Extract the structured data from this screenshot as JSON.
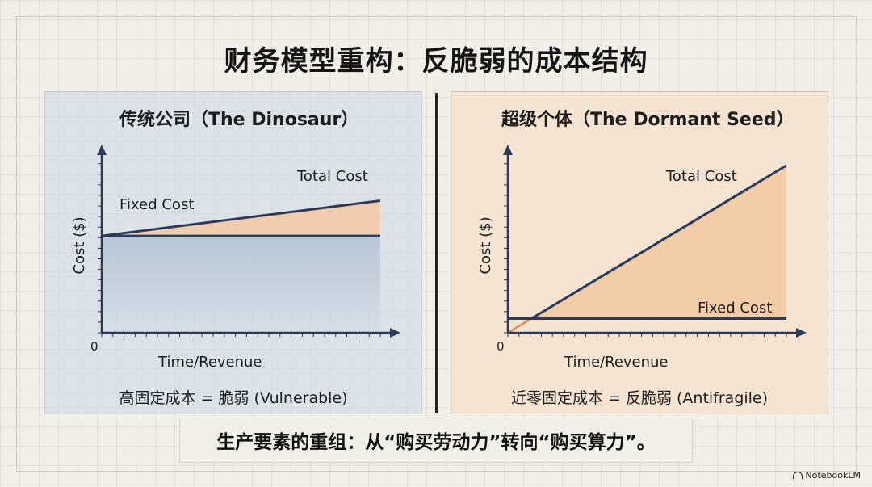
{
  "title": "财务模型重构：反脆弱的成本结构",
  "left_panel": {
    "title": "传统公司（The Dinosaur）",
    "caption": "高固定成本 = 脆弱 (Vulnerable)"
  },
  "right_panel": {
    "title": "超级个体（The Dormant Seed）",
    "caption": "近零固定成本 = 反脆弱 (Antifragile)"
  },
  "banner_text": "生产要素的重组：从“购买劳动力”转向“购买算力”。",
  "brand": "NotebookLM",
  "colors": {
    "line": "#2a3a5a",
    "total_fill": "#f3c9a3",
    "fixed_fill_left": "#b9c6d6",
    "accent_right_start": "#e08a5a"
  },
  "chart_data": [
    {
      "type": "line",
      "title": "",
      "xlabel": "Time/Revenue",
      "ylabel": "Cost ($)",
      "origin_label": "0",
      "xlim": [
        0,
        100
      ],
      "ylim": [
        0,
        100
      ],
      "series": [
        {
          "name": "Fixed Cost",
          "x": [
            0,
            100
          ],
          "y": [
            55,
            55
          ]
        },
        {
          "name": "Total Cost",
          "x": [
            0,
            100
          ],
          "y": [
            55,
            75
          ]
        }
      ]
    },
    {
      "type": "line",
      "title": "",
      "xlabel": "Time/Revenue",
      "ylabel": "Cost ($)",
      "origin_label": "0",
      "xlim": [
        0,
        100
      ],
      "ylim": [
        0,
        100
      ],
      "series": [
        {
          "name": "Fixed Cost",
          "x": [
            0,
            100
          ],
          "y": [
            8,
            8
          ]
        },
        {
          "name": "Total Cost",
          "x": [
            0,
            100
          ],
          "y": [
            0,
            95
          ]
        }
      ]
    }
  ]
}
